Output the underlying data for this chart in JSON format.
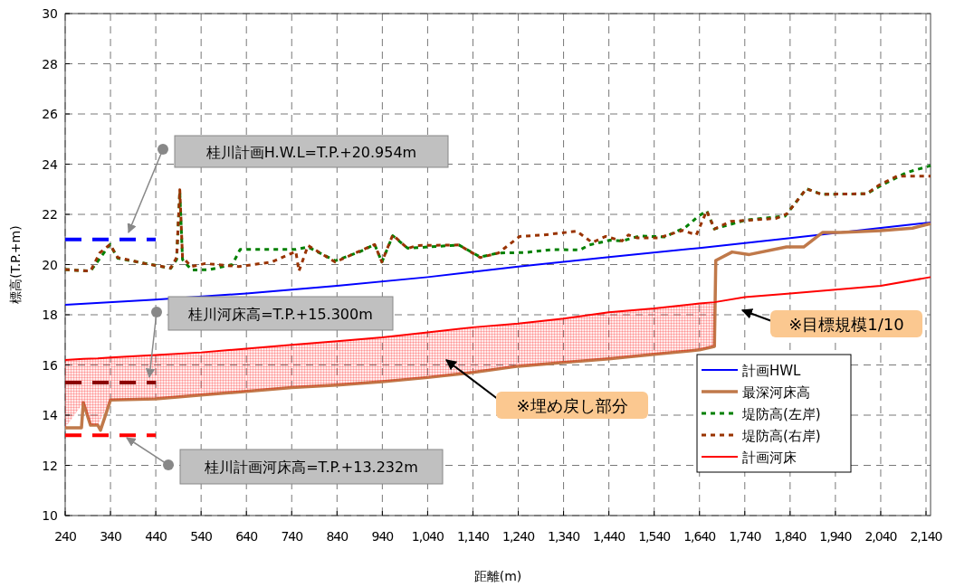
{
  "chart_data": {
    "type": "line",
    "xlabel": "距離(m)",
    "ylabel": "標高(T.P.+m)",
    "xlim": [
      240,
      2150
    ],
    "ylim": [
      10,
      30
    ],
    "xticks": [
      240,
      340,
      440,
      540,
      640,
      740,
      840,
      940,
      {
        "value": 1040,
        "label": "1,040"
      },
      {
        "value": 1140,
        "label": "1,140"
      },
      {
        "value": 1240,
        "label": "1,240"
      },
      {
        "value": 1340,
        "label": "1,340"
      },
      {
        "value": 1440,
        "label": "1,440"
      },
      {
        "value": 1540,
        "label": "1,540"
      },
      {
        "value": 1640,
        "label": "1,640"
      },
      {
        "value": 1740,
        "label": "1,740"
      },
      {
        "value": 1840,
        "label": "1,840"
      },
      {
        "value": 1940,
        "label": "1,940"
      },
      {
        "value": 2040,
        "label": "2,040"
      },
      {
        "value": 2140,
        "label": "2,140"
      }
    ],
    "yticks": [
      10,
      12,
      14,
      16,
      18,
      20,
      22,
      24,
      26,
      28,
      30
    ],
    "grid": true,
    "legend": "right",
    "marker": "none",
    "series": [
      {
        "name": "計画HWL",
        "color": "#0000ff",
        "line_style": "solid",
        "x": [
          240,
          440,
          640,
          840,
          1040,
          1240,
          1440,
          1640,
          1840,
          2040,
          2150
        ],
        "values": [
          18.4,
          18.6,
          18.85,
          19.15,
          19.5,
          19.92,
          20.3,
          20.66,
          21.05,
          21.46,
          21.68
        ]
      },
      {
        "name": "最深河床高",
        "color": "#c0794a",
        "line_style": "solid",
        "x": [
          240,
          276,
          280,
          296,
          312,
          318,
          340,
          440,
          540,
          640,
          740,
          840,
          940,
          1040,
          1140,
          1240,
          1340,
          1440,
          1540,
          1640,
          1673,
          1676,
          1712,
          1750,
          1832,
          1870,
          1912,
          1952,
          2040,
          2110,
          2150
        ],
        "values": [
          13.5,
          13.5,
          14.5,
          13.6,
          13.6,
          13.4,
          14.6,
          14.65,
          14.8,
          14.95,
          15.1,
          15.2,
          15.33,
          15.5,
          15.7,
          15.95,
          16.1,
          16.24,
          16.42,
          16.6,
          16.74,
          20.16,
          20.5,
          20.4,
          20.7,
          20.7,
          21.28,
          21.28,
          21.35,
          21.45,
          21.63
        ]
      },
      {
        "name": "堤防高(左岸)",
        "color": "#008000",
        "line_style": "dotted",
        "x": [
          240,
          296,
          339,
          356,
          416,
          473,
          486,
          493,
          499,
          519,
          559,
          609,
          626,
          749,
          776,
          836,
          889,
          923,
          939,
          963,
          996,
          1109,
          1156,
          1196,
          1256,
          1316,
          1376,
          1396,
          1443,
          1469,
          1509,
          1563,
          1609,
          1636,
          1656,
          1673,
          1743,
          1829,
          1876,
          1909,
          2009,
          2036,
          2096,
          2150
        ],
        "values": [
          19.8,
          19.74,
          20.8,
          20.25,
          20.05,
          19.85,
          20.2,
          22.9,
          20.2,
          19.78,
          19.8,
          20.0,
          20.6,
          20.6,
          20.7,
          20.15,
          20.5,
          20.8,
          20.1,
          21.15,
          20.65,
          20.78,
          20.3,
          20.46,
          20.48,
          20.6,
          20.58,
          20.78,
          20.97,
          20.94,
          21.14,
          21.1,
          21.48,
          21.9,
          22.14,
          21.42,
          21.78,
          21.93,
          23.02,
          22.8,
          22.82,
          23.1,
          23.66,
          23.94
        ]
      },
      {
        "name": "堤防高(右岸)",
        "color": "#993300",
        "line_style": "dotted",
        "x": [
          240,
          296,
          316,
          339,
          356,
          416,
          473,
          486,
          493,
          499,
          519,
          549,
          623,
          696,
          749,
          756,
          776,
          836,
          923,
          939,
          963,
          996,
          1016,
          1109,
          1156,
          1196,
          1243,
          1296,
          1369,
          1403,
          1433,
          1469,
          1483,
          1503,
          1549,
          1603,
          1633,
          1656,
          1673,
          1709,
          1809,
          1833,
          1876,
          1909,
          2009,
          2036,
          2076,
          2150
        ],
        "values": [
          19.8,
          19.74,
          20.46,
          20.8,
          20.28,
          20.04,
          19.86,
          20.28,
          22.98,
          20.28,
          19.92,
          20.04,
          19.92,
          20.1,
          20.52,
          19.74,
          20.76,
          20.1,
          20.8,
          20.1,
          21.18,
          20.64,
          20.76,
          20.78,
          20.28,
          20.46,
          21.12,
          21.18,
          21.33,
          20.88,
          21.12,
          20.94,
          21.18,
          21.06,
          21.06,
          21.36,
          21.18,
          22.14,
          21.42,
          21.72,
          21.84,
          22.02,
          23.02,
          22.8,
          22.82,
          23.16,
          23.52,
          23.52
        ]
      },
      {
        "name": "計画河床",
        "color": "#ff0000",
        "line_style": "solid",
        "x": [
          240,
          280,
          296,
          312,
          340,
          440,
          540,
          640,
          740,
          840,
          940,
          1040,
          1140,
          1240,
          1340,
          1440,
          1540,
          1640,
          1673,
          1740,
          1840,
          1940,
          2040,
          2150
        ],
        "values": [
          16.2,
          16.24,
          16.25,
          16.26,
          16.3,
          16.4,
          16.5,
          16.65,
          16.8,
          16.95,
          17.1,
          17.3,
          17.5,
          17.65,
          17.85,
          18.1,
          18.25,
          18.45,
          18.5,
          18.7,
          18.85,
          19.0,
          19.15,
          19.5
        ],
        "lower": [
          13.5,
          14.5,
          13.6,
          13.6,
          14.6,
          14.65,
          14.8,
          14.95,
          15.1,
          15.2,
          15.33,
          15.5,
          15.7,
          15.95,
          16.1,
          16.24,
          16.42,
          16.6,
          16.74,
          null,
          null,
          null,
          null,
          null
        ],
        "upper": [
          16.2,
          16.24,
          16.25,
          16.26,
          16.3,
          16.4,
          16.5,
          16.65,
          16.8,
          16.95,
          17.1,
          17.3,
          17.5,
          17.65,
          17.85,
          18.1,
          18.25,
          18.45,
          18.5,
          null,
          null,
          null,
          null,
          null
        ]
      },
      {
        "color": "#0000ff",
        "line_style": "dashed",
        "x": [
          240,
          440
        ],
        "values": [
          21.0,
          21.0
        ]
      },
      {
        "color": "#8b0000",
        "line_style": "dashed",
        "x": [
          240,
          440
        ],
        "values": [
          15.3,
          15.3
        ]
      },
      {
        "color": "#ff0000",
        "line_style": "dashed",
        "x": [
          240,
          440
        ],
        "values": [
          13.2,
          13.2
        ]
      }
    ],
    "annotations": [
      "桂川計画H.W.L=T.P.+20.954m",
      "桂川河床高=T.P.+15.300m",
      "桂川計画河床高=T.P.+13.232m",
      "※埋め戻し部分",
      "※目標規模1/10"
    ]
  }
}
